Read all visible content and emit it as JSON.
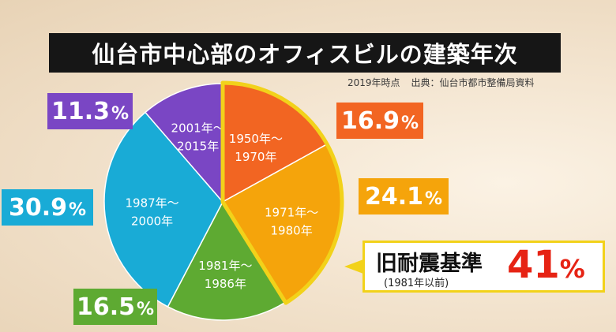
{
  "title": "仙台市中心部のオフィスビルの建築年次",
  "source": {
    "as_of": "2019年時点",
    "credit": "出典：仙台市都市整備局資料"
  },
  "chart_data": {
    "type": "pie",
    "title": "仙台市中心部のオフィスビルの建築年次",
    "start_angle_deg": 0,
    "direction": "clockwise",
    "slices": [
      {
        "label_line1": "1950年～",
        "label_line2": "1970年",
        "value": 16.9,
        "value_label": "16.9",
        "color": "#f26522"
      },
      {
        "label_line1": "1971年～",
        "label_line2": "1980年",
        "value": 24.1,
        "value_label": "24.1",
        "color": "#f5a40b"
      },
      {
        "label_line1": "1981年～",
        "label_line2": "1986年",
        "value": 16.5,
        "value_label": "16.5",
        "color": "#5eaa32"
      },
      {
        "label_line1": "1987年～",
        "label_line2": "2000年",
        "value": 30.9,
        "value_label": "30.9",
        "color": "#19abd6"
      },
      {
        "label_line1": "2001年～",
        "label_line2": "2015年",
        "value": 11.3,
        "value_label": "11.3",
        "color": "#7a46c4"
      }
    ],
    "highlight": {
      "slices": [
        0,
        1
      ],
      "label": "旧耐震基準",
      "sublabel": "(1981年以前)",
      "value": 41,
      "value_label": "41",
      "outline_color": "#f2d21a",
      "value_color": "#e62314"
    },
    "unit_sign": "%"
  }
}
